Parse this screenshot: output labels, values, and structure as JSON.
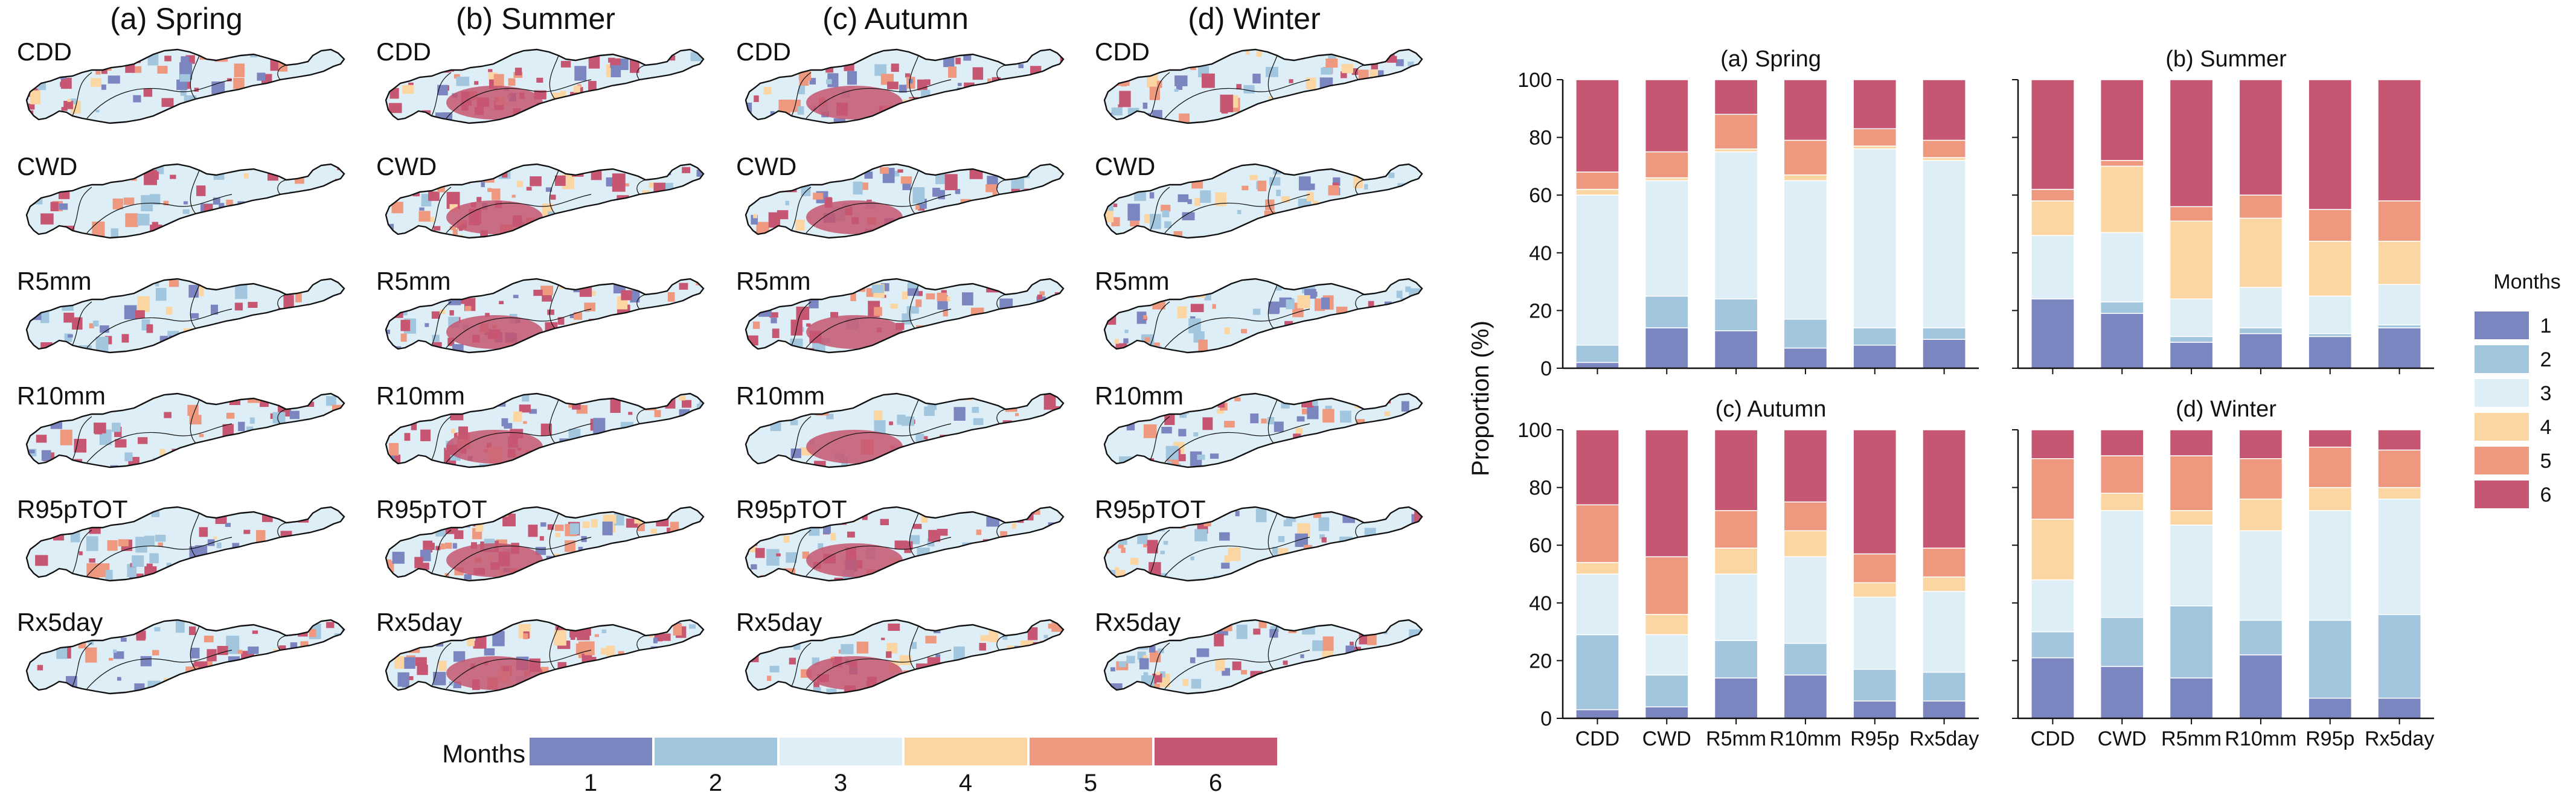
{
  "colors": {
    "m1": "#7b86c0",
    "m2": "#a3c6df",
    "m3": "#ddeef6",
    "m4": "#fbd6a3",
    "m5": "#ee9880",
    "m6": "#c65671",
    "outline": "#111111"
  },
  "maps": {
    "seasons": [
      "(a) Spring",
      "(b) Summer",
      "(c) Autumn",
      "(d) Winter"
    ],
    "indices": [
      "CDD",
      "CWD",
      "R5mm",
      "R10mm",
      "R95pTOT",
      "Rx5day"
    ],
    "colorbar": {
      "title": "Months",
      "labels": [
        "1",
        "2",
        "3",
        "4",
        "5",
        "6"
      ]
    }
  },
  "chart_data": {
    "type": "bar",
    "stacked": true,
    "ylabel": "Proportion (%)",
    "ylim": [
      0,
      100
    ],
    "yticks": [
      0,
      20,
      40,
      60,
      80,
      100
    ],
    "categories": [
      "CDD",
      "CWD",
      "R5mm",
      "R10mm",
      "R95p",
      "Rx5day"
    ],
    "legend": {
      "title": "Months",
      "labels": [
        "1",
        "2",
        "3",
        "4",
        "5",
        "6"
      ],
      "position": "right"
    },
    "panels": [
      {
        "title": "(a) Spring",
        "series": [
          {
            "name": "1",
            "values": [
              2,
              14,
              13,
              7,
              8,
              10
            ]
          },
          {
            "name": "2",
            "values": [
              6,
              11,
              11,
              10,
              6,
              4
            ]
          },
          {
            "name": "3",
            "values": [
              52,
              40,
              51,
              48,
              62,
              58
            ]
          },
          {
            "name": "4",
            "values": [
              2,
              1,
              1,
              2,
              1,
              1
            ]
          },
          {
            "name": "5",
            "values": [
              6,
              9,
              12,
              12,
              6,
              6
            ]
          },
          {
            "name": "6",
            "values": [
              32,
              25,
              12,
              21,
              17,
              21
            ]
          }
        ]
      },
      {
        "title": "(b) Summer",
        "series": [
          {
            "name": "1",
            "values": [
              24,
              19,
              9,
              12,
              11,
              14
            ]
          },
          {
            "name": "2",
            "values": [
              0,
              4,
              2,
              2,
              1,
              1
            ]
          },
          {
            "name": "3",
            "values": [
              22,
              24,
              13,
              14,
              13,
              14
            ]
          },
          {
            "name": "4",
            "values": [
              12,
              23,
              27,
              24,
              19,
              15
            ]
          },
          {
            "name": "5",
            "values": [
              4,
              2,
              5,
              8,
              11,
              14
            ]
          },
          {
            "name": "6",
            "values": [
              38,
              28,
              44,
              40,
              45,
              42
            ]
          }
        ]
      },
      {
        "title": "(c) Autumn",
        "series": [
          {
            "name": "1",
            "values": [
              3,
              4,
              14,
              15,
              6,
              6
            ]
          },
          {
            "name": "2",
            "values": [
              26,
              11,
              13,
              11,
              11,
              10
            ]
          },
          {
            "name": "3",
            "values": [
              21,
              14,
              23,
              30,
              25,
              28
            ]
          },
          {
            "name": "4",
            "values": [
              4,
              7,
              9,
              9,
              5,
              5
            ]
          },
          {
            "name": "5",
            "values": [
              20,
              20,
              13,
              10,
              10,
              10
            ]
          },
          {
            "name": "6",
            "values": [
              26,
              44,
              28,
              25,
              43,
              41
            ]
          }
        ]
      },
      {
        "title": "(d) Winter",
        "series": [
          {
            "name": "1",
            "values": [
              21,
              18,
              14,
              22,
              7,
              7
            ]
          },
          {
            "name": "2",
            "values": [
              9,
              17,
              25,
              12,
              27,
              29
            ]
          },
          {
            "name": "3",
            "values": [
              18,
              37,
              28,
              31,
              38,
              40
            ]
          },
          {
            "name": "4",
            "values": [
              21,
              6,
              5,
              11,
              8,
              4
            ]
          },
          {
            "name": "5",
            "values": [
              21,
              13,
              19,
              14,
              14,
              13
            ]
          },
          {
            "name": "6",
            "values": [
              10,
              9,
              9,
              10,
              6,
              7
            ]
          }
        ]
      }
    ]
  }
}
